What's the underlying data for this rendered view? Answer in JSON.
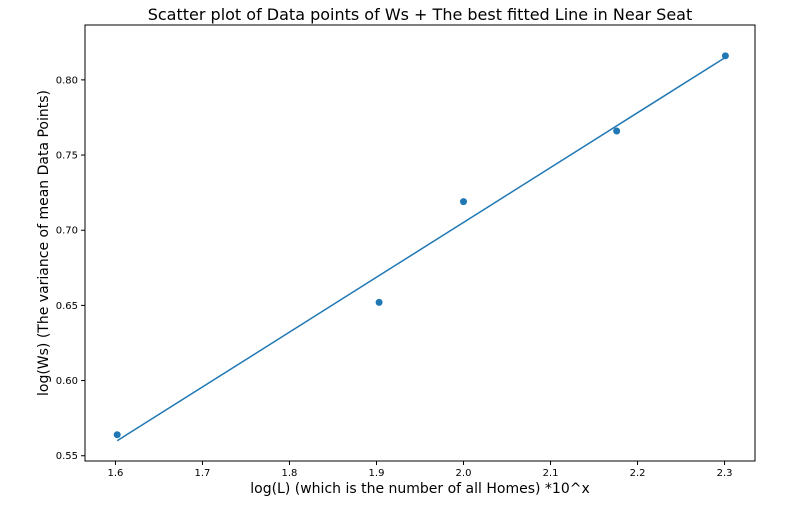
{
  "chart_data": {
    "type": "scatter",
    "title": "Scatter plot of Data points of Ws + The best fitted Line in Near Seat",
    "xlabel": "log(L) (which is the number of all Homes) *10^x",
    "ylabel": "log(Ws) (The variance of mean Data Points)",
    "xlim": [
      1.565,
      2.335
    ],
    "ylim": [
      0.5465,
      0.8365
    ],
    "xticks": [
      1.6,
      1.7,
      1.8,
      1.9,
      2.0,
      2.1,
      2.2,
      2.3
    ],
    "xtick_labels": [
      "1.6",
      "1.7",
      "1.8",
      "1.9",
      "2.0",
      "2.1",
      "2.2",
      "2.3"
    ],
    "yticks": [
      0.55,
      0.6,
      0.65,
      0.7,
      0.75,
      0.8
    ],
    "ytick_labels": [
      "0.55",
      "0.60",
      "0.65",
      "0.70",
      "0.75",
      "0.80"
    ],
    "grid": false,
    "series": [
      {
        "kind": "scatter",
        "x": [
          1.602,
          1.903,
          2.0,
          2.176,
          2.301
        ],
        "y": [
          0.564,
          0.652,
          0.719,
          0.766,
          0.816
        ],
        "color": "#1f77b4"
      },
      {
        "kind": "line",
        "x": [
          1.602,
          2.301
        ],
        "y": [
          0.56,
          0.815
        ],
        "color": "#1f77b4"
      }
    ]
  }
}
